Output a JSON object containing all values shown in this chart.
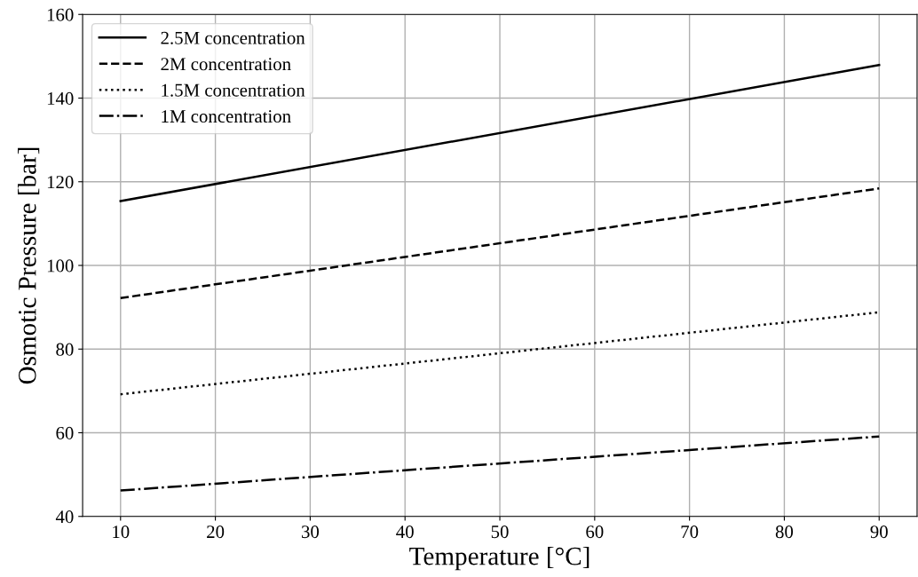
{
  "chart_data": {
    "type": "line",
    "xlabel": "Temperature [°C]",
    "ylabel": "Osmotic Pressure [bar]",
    "x": [
      10,
      90
    ],
    "series": [
      {
        "name": "2.5M concentration",
        "color": "#000000",
        "line_style": "solid",
        "values": [
          115.4,
          147.9
        ]
      },
      {
        "name": "2M concentration",
        "color": "#000000",
        "line_style": "dashed",
        "values": [
          92.2,
          118.4
        ]
      },
      {
        "name": "1.5M concentration",
        "color": "#000000",
        "line_style": "dotted",
        "values": [
          69.2,
          88.8
        ]
      },
      {
        "name": "1M concentration",
        "color": "#000000",
        "line_style": "dashdot",
        "values": [
          46.2,
          59.1
        ]
      }
    ],
    "xlim": [
      6,
      94
    ],
    "xticks": [
      10,
      20,
      30,
      40,
      50,
      60,
      70,
      80,
      90
    ],
    "ylim": [
      40,
      160
    ],
    "yticks": [
      40,
      60,
      80,
      100,
      120,
      140,
      160
    ],
    "grid": true,
    "legend": "top left",
    "marker": "none"
  }
}
